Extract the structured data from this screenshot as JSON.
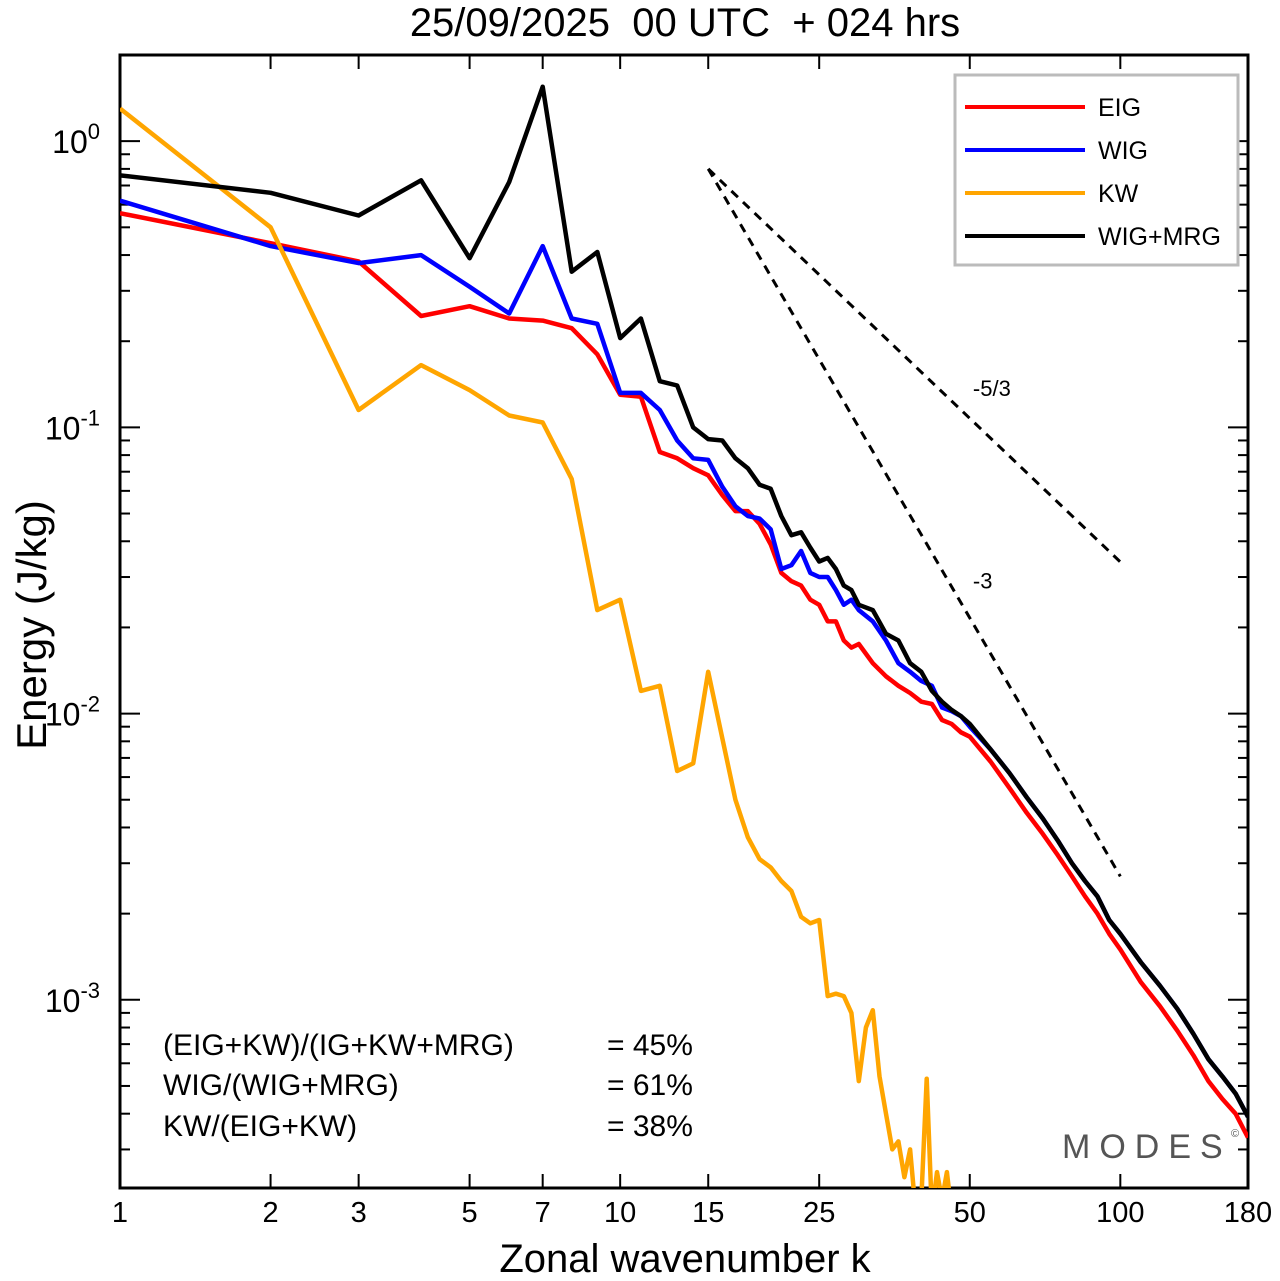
{
  "chart_data": {
    "type": "line",
    "title": "25/09/2025  00 UTC  + 024 hrs",
    "xlabel": "Zonal wavenumber k",
    "ylabel": "Energy (J/kg)",
    "xscale": "log",
    "yscale": "log",
    "xlim": [
      1,
      180
    ],
    "ylim": [
      0.00022,
      2.0
    ],
    "xticks": [
      1,
      2,
      3,
      5,
      7,
      10,
      15,
      25,
      50,
      100,
      180
    ],
    "xtick_labels": [
      "1",
      "2",
      "3",
      "5",
      "7",
      "10",
      "15",
      "25",
      "50",
      "100",
      "180"
    ],
    "yticks": [
      {
        "value": 1,
        "base": "10",
        "exp": "0"
      },
      {
        "value": 0.1,
        "base": "10",
        "exp": "-1"
      },
      {
        "value": 0.01,
        "base": "10",
        "exp": "-2"
      },
      {
        "value": 0.001,
        "base": "10",
        "exp": "-3"
      }
    ],
    "legend_position": "top-right",
    "series": [
      {
        "name": "EIG",
        "color": "#ff0000",
        "x": [
          1,
          2,
          3,
          4,
          5,
          6,
          7,
          8,
          9,
          10,
          11,
          12,
          13,
          14,
          15,
          16,
          17,
          18,
          19,
          20,
          21,
          22,
          23,
          24,
          25,
          26,
          27,
          28,
          29,
          30,
          32,
          34,
          36,
          38,
          40,
          42,
          44,
          46,
          48,
          50,
          55,
          60,
          65,
          70,
          75,
          80,
          85,
          90,
          95,
          100,
          110,
          120,
          130,
          140,
          150,
          160,
          170,
          180
        ],
        "y": [
          0.56,
          0.44,
          0.38,
          0.245,
          0.265,
          0.24,
          0.236,
          0.222,
          0.18,
          0.13,
          0.128,
          0.082,
          0.078,
          0.072,
          0.068,
          0.058,
          0.051,
          0.051,
          0.046,
          0.039,
          0.031,
          0.029,
          0.028,
          0.025,
          0.024,
          0.021,
          0.021,
          0.018,
          0.017,
          0.0175,
          0.015,
          0.0135,
          0.0125,
          0.0118,
          0.011,
          0.0108,
          0.0095,
          0.0092,
          0.0086,
          0.0083,
          0.0068,
          0.0055,
          0.0045,
          0.0038,
          0.0032,
          0.0027,
          0.0023,
          0.002,
          0.0017,
          0.0015,
          0.00115,
          0.00095,
          0.00078,
          0.00064,
          0.00052,
          0.00045,
          0.0004,
          0.00033
        ]
      },
      {
        "name": "WIG",
        "color": "#0000ff",
        "x": [
          1,
          2,
          3,
          4,
          5,
          6,
          7,
          8,
          9,
          10,
          11,
          12,
          13,
          14,
          15,
          16,
          17,
          18,
          19,
          20,
          21,
          22,
          23,
          24,
          25,
          26,
          27,
          28,
          29,
          30,
          32,
          34,
          36,
          38,
          40,
          42,
          44,
          46,
          48,
          50,
          55,
          60,
          65,
          70,
          75,
          80,
          85,
          90,
          95,
          100,
          110,
          120,
          130,
          140,
          150,
          160,
          170,
          180
        ],
        "y": [
          0.62,
          0.43,
          0.375,
          0.4,
          0.31,
          0.25,
          0.43,
          0.24,
          0.23,
          0.132,
          0.132,
          0.115,
          0.09,
          0.078,
          0.077,
          0.062,
          0.053,
          0.049,
          0.048,
          0.044,
          0.032,
          0.033,
          0.037,
          0.031,
          0.03,
          0.03,
          0.027,
          0.024,
          0.025,
          0.023,
          0.021,
          0.018,
          0.015,
          0.014,
          0.013,
          0.0125,
          0.0105,
          0.0102,
          0.0098,
          0.009,
          0.0075,
          0.0062,
          0.0051,
          0.0043,
          0.0036,
          0.003,
          0.0026,
          0.0023,
          0.0019,
          0.0017,
          0.00135,
          0.00112,
          0.00093,
          0.00076,
          0.00062,
          0.00054,
          0.00047,
          0.00039
        ]
      },
      {
        "name": "KW",
        "color": "#ffa500",
        "x": [
          1,
          2,
          3,
          4,
          5,
          6,
          7,
          8,
          9,
          10,
          11,
          12,
          13,
          14,
          15,
          16,
          17,
          18,
          19,
          20,
          21,
          22,
          23,
          24,
          25,
          26,
          27,
          28,
          29,
          30,
          31,
          32,
          33,
          34,
          35,
          36,
          37,
          38,
          39,
          40,
          41,
          42,
          43,
          44,
          45,
          46
        ],
        "y": [
          1.3,
          0.5,
          0.115,
          0.165,
          0.135,
          0.11,
          0.104,
          0.066,
          0.023,
          0.025,
          0.012,
          0.0125,
          0.0063,
          0.0067,
          0.014,
          0.0082,
          0.005,
          0.0037,
          0.0031,
          0.0029,
          0.0026,
          0.0024,
          0.00195,
          0.00185,
          0.0019,
          0.00103,
          0.00105,
          0.00103,
          0.0009,
          0.00052,
          0.0008,
          0.00092,
          0.00054,
          0.0004,
          0.0003,
          0.00032,
          0.00024,
          0.0003,
          0.00018,
          0.0002,
          0.00053,
          0.00018,
          0.00025,
          0.0002,
          0.00025,
          0.00018
        ]
      },
      {
        "name": "WIG+MRG",
        "color": "#000000",
        "x": [
          1,
          2,
          3,
          4,
          5,
          6,
          7,
          8,
          9,
          10,
          11,
          12,
          13,
          14,
          15,
          16,
          17,
          18,
          19,
          20,
          21,
          22,
          23,
          24,
          25,
          26,
          27,
          28,
          29,
          30,
          32,
          34,
          36,
          38,
          40,
          42,
          44,
          46,
          48,
          50,
          55,
          60,
          65,
          70,
          75,
          80,
          85,
          90,
          95,
          100,
          110,
          120,
          130,
          140,
          150,
          160,
          170,
          180
        ],
        "y": [
          0.76,
          0.66,
          0.55,
          0.73,
          0.39,
          0.72,
          1.55,
          0.35,
          0.41,
          0.205,
          0.24,
          0.145,
          0.14,
          0.1,
          0.091,
          0.09,
          0.078,
          0.072,
          0.063,
          0.061,
          0.049,
          0.042,
          0.043,
          0.038,
          0.034,
          0.035,
          0.032,
          0.028,
          0.027,
          0.024,
          0.023,
          0.019,
          0.018,
          0.015,
          0.014,
          0.012,
          0.011,
          0.0103,
          0.0098,
          0.0092,
          0.0075,
          0.0062,
          0.0051,
          0.0043,
          0.0036,
          0.003,
          0.0026,
          0.0023,
          0.0019,
          0.0017,
          0.00135,
          0.00112,
          0.00093,
          0.00076,
          0.00062,
          0.00054,
          0.00047,
          0.00039
        ]
      }
    ],
    "reference_slopes": [
      {
        "label": "-5/3",
        "slope": -1.6667,
        "x_start": 15,
        "x_end": 100,
        "y_start": 0.8
      },
      {
        "label": "-3",
        "slope": -3,
        "x_start": 15,
        "x_end": 100,
        "y_start": 0.8
      }
    ],
    "annotations": [
      {
        "label": "(EIG+KW)/(IG+KW+MRG)",
        "value": "= 45%"
      },
      {
        "label": "WIG/(WIG+MRG)",
        "value": "= 61%"
      },
      {
        "label": "KW/(EIG+KW)",
        "value": "= 38%"
      }
    ],
    "watermark": "MODES",
    "watermark_mark": "©"
  }
}
